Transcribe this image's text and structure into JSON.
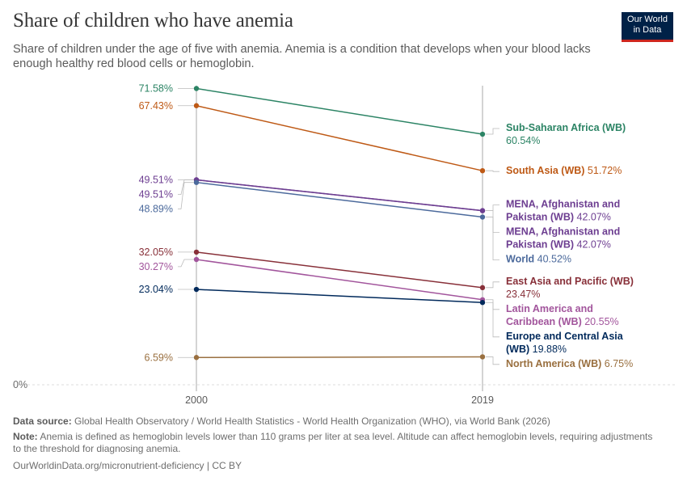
{
  "header": {
    "title": "Share of children who have anemia",
    "subtitle": "Share of children under the age of five with anemia. Anemia is a condition that develops when your blood lacks enough healthy red blood cells or hemoglobin.",
    "logo_line1": "Our World",
    "logo_line2": "in Data"
  },
  "footer": {
    "source_label": "Data source:",
    "source_text": "Global Health Observatory / World Health Statistics - World Health Organization (WHO), via World Bank (2026)",
    "note_label": "Note:",
    "note_text": "Anemia is defined as hemoglobin levels lower than 110 grams per liter at sea level. Altitude can affect hemoglobin levels, requiring adjustments to the threshold for diagnosing anemia.",
    "url_text": "OurWorldinData.org/micronutrient-deficiency | CC BY"
  },
  "chart_data": {
    "type": "line",
    "x": [
      2000,
      2019
    ],
    "ylim": [
      0,
      75
    ],
    "y_tick_label": "0%",
    "grid": false,
    "series": [
      {
        "name": "Sub-Saharan Africa (WB)",
        "values": [
          71.58,
          60.54
        ],
        "start_label": "71.58%",
        "end_label": "60.54%",
        "color": "#2c8465",
        "end_lines": [
          "Sub-Saharan Africa (WB)",
          "60.54%"
        ]
      },
      {
        "name": "South Asia (WB)",
        "values": [
          67.43,
          51.72
        ],
        "start_label": "67.43%",
        "end_label": "51.72%",
        "color": "#be5915",
        "end_lines": [
          "South Asia (WB) 51.72%"
        ]
      },
      {
        "name": "MENA, Afghanistan and Pakistan (WB)",
        "values": [
          49.51,
          42.07
        ],
        "start_label": "49.51%",
        "end_label": "42.07%",
        "color": "#6d3e91",
        "end_lines": [
          "MENA, Afghanistan and",
          "Pakistan (WB) 42.07%"
        ]
      },
      {
        "name": "MENA, Afghanistan and Pakistan (WB)",
        "values": [
          49.51,
          42.07
        ],
        "start_label": "49.51%",
        "end_label": "42.07%",
        "color": "#6d3e91",
        "end_lines": [
          "MENA, Afghanistan and",
          "Pakistan (WB) 42.07%"
        ]
      },
      {
        "name": "World",
        "values": [
          48.89,
          40.52
        ],
        "start_label": "48.89%",
        "end_label": "40.52%",
        "color": "#4c6a9c",
        "end_lines": [
          "World 40.52%"
        ]
      },
      {
        "name": "East Asia and Pacific (WB)",
        "values": [
          32.05,
          23.47
        ],
        "start_label": "32.05%",
        "end_label": "23.47%",
        "color": "#883039",
        "end_lines": [
          "East Asia and Pacific (WB)",
          "23.47%"
        ]
      },
      {
        "name": "Latin America and Caribbean (WB)",
        "values": [
          30.27,
          20.55
        ],
        "start_label": "30.27%",
        "end_label": "20.55%",
        "color": "#a2559c",
        "end_lines": [
          "Latin America and",
          "Caribbean (WB) 20.55%"
        ]
      },
      {
        "name": "Europe and Central Asia (WB)",
        "values": [
          23.04,
          19.88
        ],
        "start_label": "23.04%",
        "end_label": "19.88%",
        "color": "#00295b",
        "end_lines": [
          "Europe and Central Asia",
          "(WB) 19.88%"
        ]
      },
      {
        "name": "North America (WB)",
        "values": [
          6.59,
          6.75
        ],
        "start_label": "6.59%",
        "end_label": "6.75%",
        "color": "#9a7040",
        "end_lines": [
          "North America (WB) 6.75%"
        ]
      }
    ]
  }
}
